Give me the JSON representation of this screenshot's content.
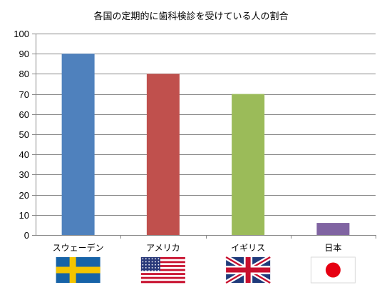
{
  "chart_data": {
    "type": "bar",
    "title": "各国の定期的に歯科検診を受けている人の割合",
    "categories": [
      "スウェーデン",
      "アメリカ",
      "イギリス",
      "日本"
    ],
    "values": [
      90,
      80,
      70,
      6
    ],
    "colors": [
      "#4f81bd",
      "#c0504d",
      "#9bbb59",
      "#8064a2"
    ],
    "flags": [
      "sweden-flag",
      "usa-flag",
      "uk-flag",
      "japan-flag"
    ],
    "ylim": [
      0,
      100
    ],
    "yticks": [
      0,
      10,
      20,
      30,
      40,
      50,
      60,
      70,
      80,
      90,
      100
    ],
    "grid": true,
    "legend": "none"
  }
}
